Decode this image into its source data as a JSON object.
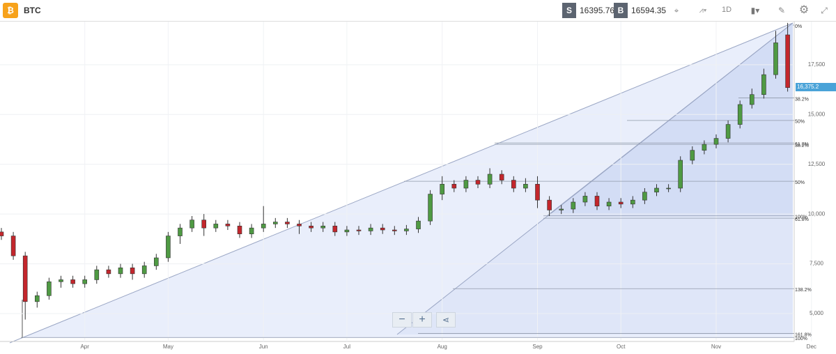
{
  "header": {
    "symbol": "BTC",
    "sell_label": "S",
    "sell_price": "16395.76",
    "buy_label": "B",
    "buy_price": "16594.35",
    "interval": "1D"
  },
  "chart_data": {
    "type": "candlestick",
    "categories": [
      null,
      null,
      null,
      null,
      null,
      null,
      null,
      "Apr",
      null,
      null,
      null,
      null,
      null,
      null,
      "May",
      null,
      null,
      null,
      null,
      null,
      null,
      null,
      "Jun",
      null,
      null,
      null,
      null,
      null,
      null,
      "Jul",
      null,
      null,
      null,
      null,
      null,
      null,
      null,
      "Aug",
      null,
      null,
      null,
      null,
      null,
      null,
      null,
      "Sep",
      null,
      null,
      null,
      null,
      null,
      null,
      "Oct",
      null,
      null,
      null,
      null,
      null,
      null,
      null,
      "Nov",
      null,
      null,
      null,
      null,
      null,
      null,
      null,
      "Dec"
    ],
    "open": [
      9100,
      8900,
      7900,
      5600,
      5900,
      6600,
      6700,
      6500,
      6700,
      7200,
      7000,
      7300,
      7000,
      7400,
      7800,
      8900,
      9300,
      9700,
      9300,
      9500,
      9400,
      9000,
      9300,
      9500,
      9600,
      9500,
      9400,
      9300,
      9400,
      9100,
      9200,
      9150,
      9300,
      9200,
      9150,
      9250,
      9650,
      11000,
      11500,
      11300,
      11700,
      11500,
      12000,
      11700,
      11300,
      11500,
      10700,
      10200,
      10250,
      10600,
      10900,
      10400,
      10600,
      10500,
      10700,
      11100,
      11300,
      11300,
      12700,
      13200,
      13500,
      13800,
      14500,
      15500,
      16000,
      17000,
      19000,
      null,
      null
    ],
    "high": [
      9300,
      9100,
      8100,
      6100,
      6800,
      6900,
      6900,
      6900,
      7400,
      7400,
      7500,
      7500,
      7600,
      8000,
      9100,
      9500,
      9900,
      10000,
      9700,
      9700,
      9600,
      9500,
      10400,
      9800,
      9800,
      9700,
      9600,
      9600,
      9600,
      9400,
      9400,
      9500,
      9500,
      9400,
      9450,
      9850,
      11200,
      11900,
      11700,
      11900,
      11900,
      12300,
      12200,
      11900,
      11800,
      11900,
      10900,
      10450,
      10800,
      11100,
      11100,
      10800,
      10800,
      10900,
      11300,
      11500,
      11500,
      12900,
      13400,
      13700,
      14000,
      14700,
      15700,
      16300,
      17300,
      19200,
      19600,
      null,
      null
    ],
    "low": [
      8700,
      7700,
      4700,
      5300,
      5700,
      6300,
      6300,
      6300,
      6500,
      6800,
      6800,
      6700,
      6800,
      7200,
      7600,
      8500,
      9100,
      8900,
      9100,
      9200,
      8800,
      8800,
      9100,
      9300,
      9300,
      9000,
      9100,
      9100,
      8900,
      8900,
      8950,
      8950,
      9000,
      8950,
      8950,
      9050,
      9450,
      10700,
      11100,
      11100,
      11300,
      11300,
      11500,
      11100,
      11100,
      10300,
      9900,
      10000,
      10050,
      10400,
      10200,
      10200,
      10300,
      10300,
      10500,
      10900,
      11100,
      11100,
      12500,
      13000,
      13300,
      13600,
      14300,
      15300,
      15800,
      16800,
      16150,
      null,
      null
    ],
    "close": [
      8900,
      7900,
      5600,
      5900,
      6600,
      6700,
      6500,
      6700,
      7200,
      7000,
      7300,
      7000,
      7400,
      7800,
      8900,
      9300,
      9700,
      9300,
      9500,
      9400,
      9000,
      9300,
      9500,
      9600,
      9500,
      9400,
      9300,
      9400,
      9100,
      9200,
      9150,
      9300,
      9200,
      9150,
      9250,
      9650,
      11000,
      11500,
      11300,
      11700,
      11500,
      12000,
      11700,
      11300,
      11500,
      10700,
      10200,
      10250,
      10600,
      10900,
      10400,
      10600,
      10500,
      10700,
      11100,
      11300,
      11300,
      12700,
      13200,
      13500,
      13800,
      14500,
      15500,
      16000,
      17000,
      18600,
      16350,
      null,
      null
    ],
    "up_color": "#4f9a43",
    "down_color": "#c3262c",
    "ylim": [
      3600,
      19700
    ],
    "yticks": [
      {
        "value": 5000,
        "label": "5,000"
      },
      {
        "value": 7500,
        "label": "7,500"
      },
      {
        "value": 10000,
        "label": "10,000"
      },
      {
        "value": 12500,
        "label": "12,500"
      },
      {
        "value": 15000,
        "label": "15,000"
      },
      {
        "value": 17500,
        "label": "17,500"
      }
    ],
    "grid": true,
    "price_tag": {
      "value": 16375.2,
      "label": "16,375.2"
    },
    "fib_levels": [
      {
        "value": 19490,
        "label": "0%"
      },
      {
        "value": 15830,
        "label": "38.2%"
      },
      {
        "value": 14700,
        "label": "50%"
      },
      {
        "value": 13570,
        "label": "61.8%"
      },
      {
        "value": 13500,
        "label": "38.2%"
      },
      {
        "value": 11645,
        "label": "50%"
      },
      {
        "value": 9910,
        "label": "100%"
      },
      {
        "value": 9790,
        "label": "61.8%"
      },
      {
        "value": 6250,
        "label": "138.2%"
      },
      {
        "value": 4000,
        "label": "161.8%"
      },
      {
        "value": 3800,
        "label": "100%"
      }
    ]
  }
}
